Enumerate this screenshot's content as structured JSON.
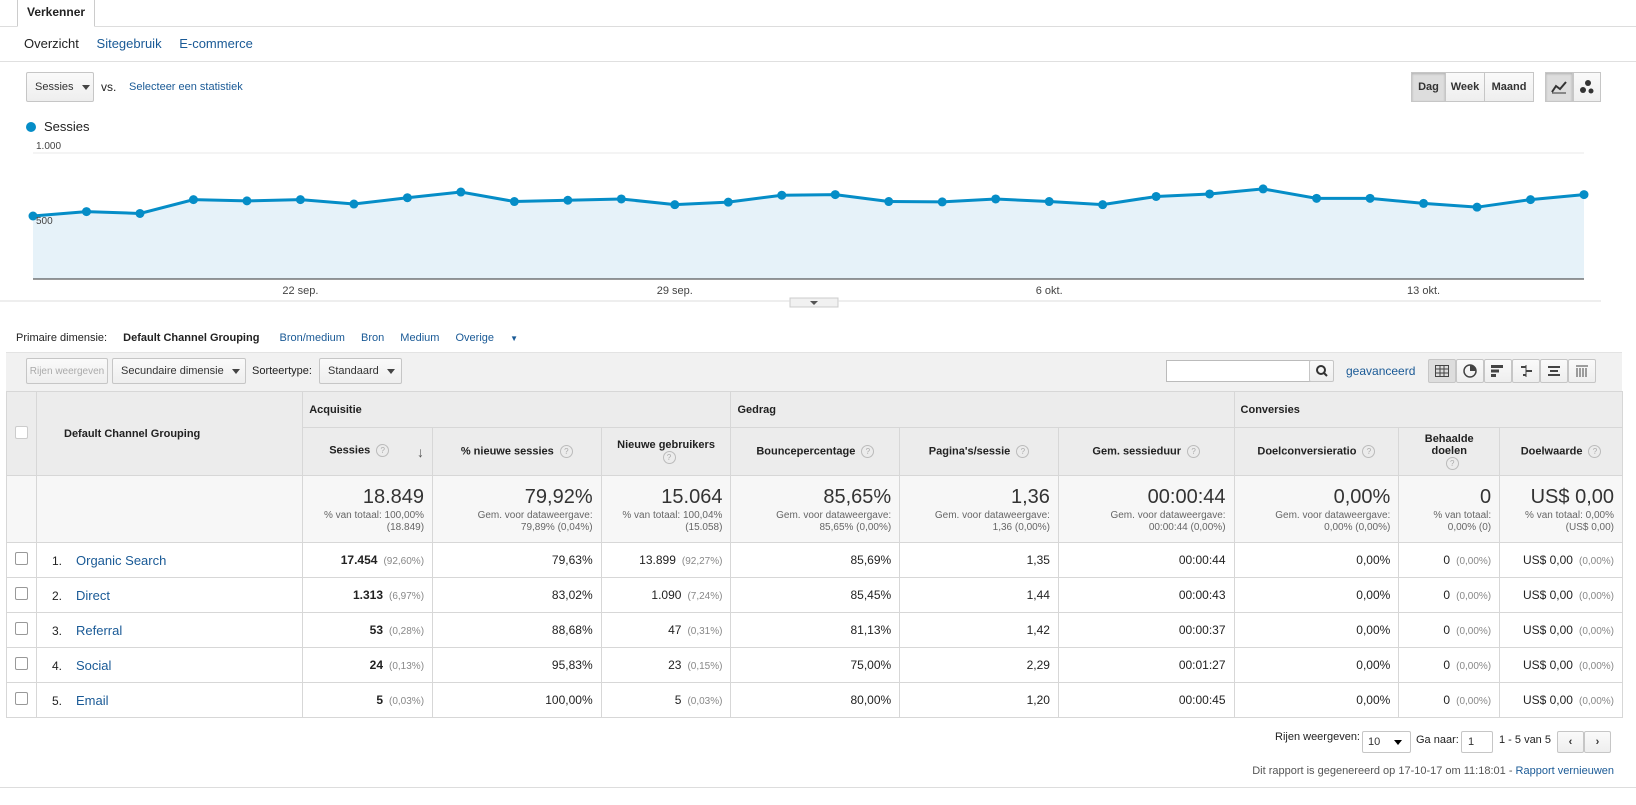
{
  "tab": "Verkenner",
  "subnav": [
    "Overzicht",
    "Sitegebruik",
    "E-commerce"
  ],
  "metric_select": "Sessies",
  "vs": "vs.",
  "select_metric_link": "Selecteer een statistiek",
  "period_buttons": [
    "Dag",
    "Week",
    "Maand"
  ],
  "legend": "Sessies",
  "chart_data": {
    "type": "area",
    "series": [
      {
        "name": "Sessies",
        "values": [
          500,
          535,
          520,
          630,
          620,
          630,
          595,
          645,
          690,
          615,
          625,
          635,
          590,
          610,
          665,
          670,
          615,
          612,
          635,
          615,
          590,
          655,
          675,
          715,
          640,
          640,
          600,
          570,
          630,
          670
        ]
      }
    ],
    "x_tick_labels": [
      "22 sep.",
      "29 sep.",
      "6 okt.",
      "13 okt."
    ],
    "y_tick_labels": [
      "1.000",
      "500"
    ],
    "ylim": [
      0,
      1000
    ],
    "color": "#058dc7"
  },
  "dimension": {
    "label": "Primaire dimensie:",
    "active": "Default Channel Grouping",
    "options": [
      "Bron/medium",
      "Bron",
      "Medium"
    ],
    "more": "Overige"
  },
  "toolbar": {
    "rows_button": "Rijen weergeven",
    "secondary": "Secundaire dimensie",
    "sort_label": "Sorteertype:",
    "sort_value": "Standaard",
    "advanced": "geavanceerd"
  },
  "table": {
    "dim_header": "Default Channel Grouping",
    "groups": [
      "Acquisitie",
      "Gedrag",
      "Conversies"
    ],
    "columns": [
      "Sessies",
      "% nieuwe sessies",
      "Nieuwe gebruikers",
      "Bouncepercentage",
      "Pagina's/sessie",
      "Gem. sessieduur",
      "Doelconversieratio",
      "Behaalde doelen",
      "Doelwaarde"
    ],
    "totals": [
      {
        "value": "18.849",
        "sub1": "% van totaal: 100,00%",
        "sub2": "(18.849)"
      },
      {
        "value": "79,92%",
        "sub1": "Gem. voor dataweergave:",
        "sub2": "79,89% (0,04%)"
      },
      {
        "value": "15.064",
        "sub1": "% van totaal: 100,04%",
        "sub2": "(15.058)"
      },
      {
        "value": "85,65%",
        "sub1": "Gem. voor dataweergave:",
        "sub2": "85,65% (0,00%)"
      },
      {
        "value": "1,36",
        "sub1": "Gem. voor dataweergave:",
        "sub2": "1,36 (0,00%)"
      },
      {
        "value": "00:00:44",
        "sub1": "Gem. voor dataweergave:",
        "sub2": "00:00:44 (0,00%)"
      },
      {
        "value": "0,00%",
        "sub1": "Gem. voor dataweergave:",
        "sub2": "0,00% (0,00%)"
      },
      {
        "value": "0",
        "sub1": "% van totaal:",
        "sub2": "0,00% (0)"
      },
      {
        "value": "US$ 0,00",
        "sub1": "% van totaal: 0,00%",
        "sub2": "(US$ 0,00)"
      }
    ],
    "rows": [
      {
        "num": "1.",
        "name": "Organic Search",
        "sessions": "17.454",
        "sessions_pct": "(92,60%)",
        "new_pct": "79,63%",
        "new_users": "13.899",
        "new_users_pct": "(92,27%)",
        "bounce": "85,69%",
        "pages": "1,35",
        "duration": "00:00:44",
        "conv": "0,00%",
        "goals": "0",
        "goals_pct": "(0,00%)",
        "value": "US$ 0,00",
        "value_pct": "(0,00%)"
      },
      {
        "num": "2.",
        "name": "Direct",
        "sessions": "1.313",
        "sessions_pct": "(6,97%)",
        "new_pct": "83,02%",
        "new_users": "1.090",
        "new_users_pct": "(7,24%)",
        "bounce": "85,45%",
        "pages": "1,44",
        "duration": "00:00:43",
        "conv": "0,00%",
        "goals": "0",
        "goals_pct": "(0,00%)",
        "value": "US$ 0,00",
        "value_pct": "(0,00%)"
      },
      {
        "num": "3.",
        "name": "Referral",
        "sessions": "53",
        "sessions_pct": "(0,28%)",
        "new_pct": "88,68%",
        "new_users": "47",
        "new_users_pct": "(0,31%)",
        "bounce": "81,13%",
        "pages": "1,42",
        "duration": "00:00:37",
        "conv": "0,00%",
        "goals": "0",
        "goals_pct": "(0,00%)",
        "value": "US$ 0,00",
        "value_pct": "(0,00%)"
      },
      {
        "num": "4.",
        "name": "Social",
        "sessions": "24",
        "sessions_pct": "(0,13%)",
        "new_pct": "95,83%",
        "new_users": "23",
        "new_users_pct": "(0,15%)",
        "bounce": "75,00%",
        "pages": "2,29",
        "duration": "00:01:27",
        "conv": "0,00%",
        "goals": "0",
        "goals_pct": "(0,00%)",
        "value": "US$ 0,00",
        "value_pct": "(0,00%)"
      },
      {
        "num": "5.",
        "name": "Email",
        "sessions": "5",
        "sessions_pct": "(0,03%)",
        "new_pct": "100,00%",
        "new_users": "5",
        "new_users_pct": "(0,03%)",
        "bounce": "80,00%",
        "pages": "1,20",
        "duration": "00:00:45",
        "conv": "0,00%",
        "goals": "0",
        "goals_pct": "(0,00%)",
        "value": "US$ 0,00",
        "value_pct": "(0,00%)"
      }
    ]
  },
  "pager": {
    "rows_label": "Rijen weergeven:",
    "rows_value": "10",
    "goto_label": "Ga naar:",
    "goto_value": "1",
    "range": "1 - 5 van 5"
  },
  "footer": {
    "text": "Dit rapport is gegenereerd op 17-10-17 om 11:18:01 - ",
    "link": "Rapport vernieuwen"
  }
}
